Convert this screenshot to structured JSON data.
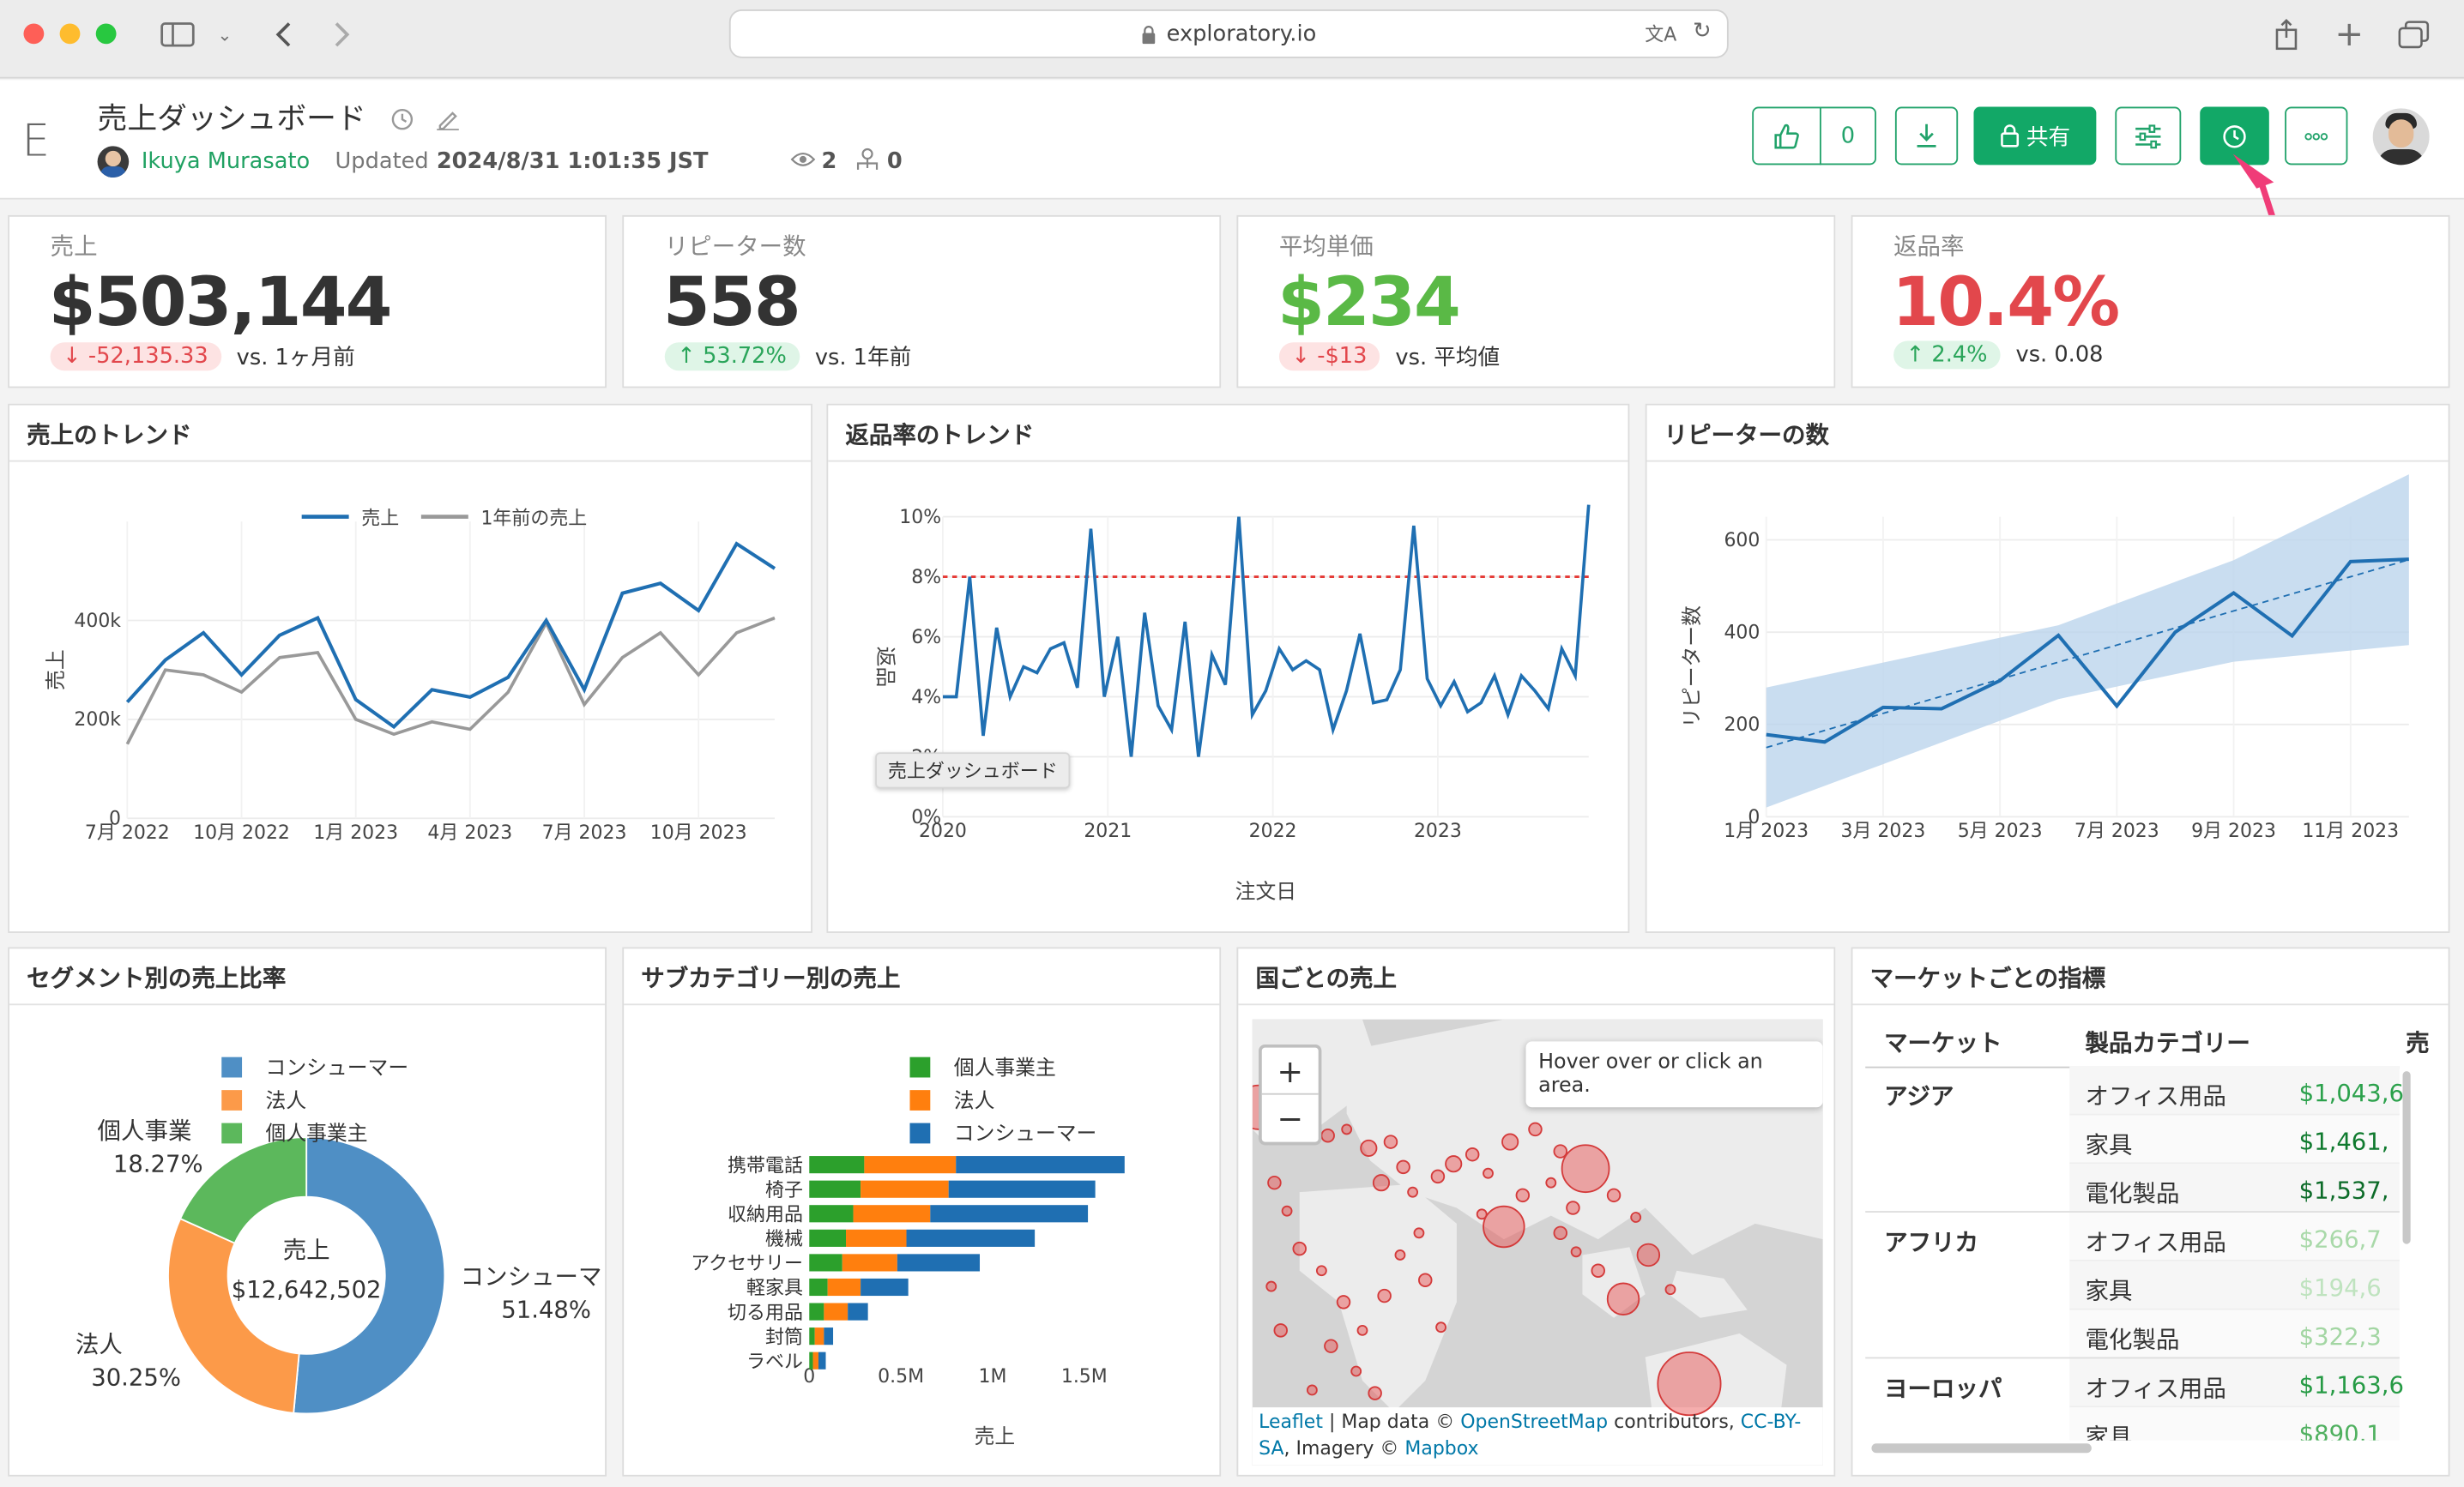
{
  "browser": {
    "url": "exploratory.io"
  },
  "header": {
    "logo": "E",
    "title": "売上ダッシュボード",
    "author": "Ikuya Murasato",
    "updated_label": "Updated",
    "updated_value": "2024/8/31 1:01:35 JST",
    "views": "2",
    "forks": "0",
    "like_count": "0",
    "share_label": "共有"
  },
  "kpis": [
    {
      "label": "売上",
      "value": "$503,144",
      "value_color": "#333333",
      "delta": "-52,135.33",
      "direction": "down",
      "compare": "vs. 1ヶ月前"
    },
    {
      "label": "リピーター数",
      "value": "558",
      "value_color": "#333333",
      "delta": "53.72%",
      "direction": "up",
      "compare": "vs. 1年前"
    },
    {
      "label": "平均単価",
      "value": "$234",
      "value_color": "#5ab946",
      "delta": "-$13",
      "direction": "down",
      "compare": "vs. 平均値"
    },
    {
      "label": "返品率",
      "value": "10.4%",
      "value_color": "#e2474c",
      "delta": "2.4%",
      "direction": "up",
      "compare": "vs. 0.08"
    }
  ],
  "panels": {
    "sales_trend": "売上のトレンド",
    "return_trend": "返品率のトレンド",
    "repeaters": "リピーターの数",
    "segment": "セグメント別の売上比率",
    "subcategory": "サブカテゴリー別の売上",
    "country": "国ごとの売上",
    "market": "マーケットごとの指標"
  },
  "tooltip": "売上ダッシュボード",
  "chart_data": [
    {
      "type": "line",
      "legend": [
        "売上",
        "1年前の売上"
      ],
      "ylabel": "売上",
      "x_ticks": [
        "7月 2022",
        "10月 2022",
        "1月 2023",
        "4月 2023",
        "7月 2023",
        "10月 2023"
      ],
      "y_ticks": [
        "0",
        "200k",
        "400k"
      ],
      "ylim": [
        0,
        600000
      ],
      "series": [
        {
          "name": "売上",
          "color": "#1f6fb2",
          "values": [
            235000,
            320000,
            375000,
            290000,
            370000,
            405000,
            240000,
            185000,
            260000,
            245000,
            285000,
            400000,
            260000,
            455000,
            475000,
            420000,
            555000,
            505000
          ]
        },
        {
          "name": "1年前の売上",
          "color": "#999999",
          "values": [
            150000,
            300000,
            290000,
            255000,
            325000,
            335000,
            200000,
            170000,
            195000,
            180000,
            255000,
            395000,
            230000,
            325000,
            375000,
            290000,
            375000,
            405000
          ]
        }
      ]
    },
    {
      "type": "line",
      "xlabel": "注文日",
      "ylabel": "返品",
      "x_ticks": [
        "2020",
        "2021",
        "2022",
        "2023"
      ],
      "y_ticks": [
        "0%",
        "2%",
        "4%",
        "6%",
        "8%",
        "10%"
      ],
      "ylim": [
        0,
        10
      ],
      "reference_line": 8,
      "values": [
        4.0,
        4.0,
        8.0,
        2.7,
        6.3,
        4.0,
        5.0,
        4.8,
        5.6,
        5.8,
        4.3,
        9.6,
        4.0,
        6.0,
        2.0,
        6.8,
        3.7,
        2.9,
        6.5,
        2.0,
        5.4,
        4.4,
        10.0,
        3.4,
        4.2,
        5.6,
        4.9,
        5.2,
        4.9,
        2.9,
        4.2,
        6.1,
        3.8,
        3.9,
        4.9,
        9.7,
        4.6,
        3.7,
        4.5,
        3.5,
        3.8,
        4.7,
        3.4,
        4.7,
        4.2,
        3.6,
        5.6,
        4.7,
        10.4
      ]
    },
    {
      "type": "line",
      "ylabel": "リピーター数",
      "x_ticks": [
        "1月 2023",
        "3月 2023",
        "5月 2023",
        "7月 2023",
        "9月 2023",
        "11月 2023"
      ],
      "y_ticks": [
        "0",
        "200",
        "400",
        "600"
      ],
      "ylim": [
        0,
        650
      ],
      "values": [
        178,
        162,
        237,
        234,
        295,
        393,
        240,
        400,
        485,
        392,
        553,
        558
      ]
    },
    {
      "type": "pie",
      "center_label": "売上",
      "center_value": "$12,642,502",
      "legend": [
        "コンシューマー",
        "法人",
        "個人事業主"
      ],
      "slices": [
        {
          "name": "コンシューマー",
          "value": 51.48,
          "label": "コンシューマ",
          "pct": "51.48%",
          "color": "#4f8fc5"
        },
        {
          "name": "法人",
          "value": 30.25,
          "label": "法人",
          "pct": "30.25%",
          "color": "#fc9a49"
        },
        {
          "name": "個人事業主",
          "value": 18.27,
          "label": "個人事業",
          "pct": "18.27%",
          "color": "#5cb85c"
        }
      ]
    },
    {
      "type": "bar",
      "orientation": "horizontal",
      "stacked": true,
      "xlabel": "売上",
      "x_ticks": [
        "0",
        "0.5M",
        "1M",
        "1.5M"
      ],
      "xlim": [
        0,
        1.8
      ],
      "legend": [
        "個人事業主",
        "法人",
        "コンシューマー"
      ],
      "categories": [
        "携帯電話",
        "椅子",
        "収納用品",
        "機械",
        "アクセサリー",
        "軽家具",
        "切る用品",
        "封筒",
        "ラベル"
      ],
      "series": [
        {
          "name": "個人事業主",
          "color": "#2ca02c",
          "values": [
            0.3,
            0.28,
            0.24,
            0.2,
            0.18,
            0.1,
            0.08,
            0.03,
            0.02
          ]
        },
        {
          "name": "法人",
          "color": "#ff7f0e",
          "values": [
            0.5,
            0.48,
            0.42,
            0.33,
            0.3,
            0.18,
            0.13,
            0.05,
            0.03
          ]
        },
        {
          "name": "コンシューマー",
          "color": "#1f6fb2",
          "values": [
            0.92,
            0.8,
            0.86,
            0.7,
            0.45,
            0.26,
            0.11,
            0.05,
            0.04
          ]
        }
      ]
    }
  ],
  "map": {
    "hover_text": "Hover over or click an area.",
    "zoom_in": "+",
    "zoom_out": "−",
    "attr_leaflet": "Leaflet",
    "attr_mapdata": "| Map data ©",
    "attr_osm": "OpenStreetMap",
    "attr_contrib": "contributors,",
    "attr_ccbysa": "CC-BY-SA",
    "attr_imagery": "Imagery ©",
    "attr_mapbox": "Mapbox"
  },
  "market_table": {
    "headers": [
      "マーケット",
      "製品カテゴリー",
      "売"
    ],
    "rows": [
      {
        "market": "アジア",
        "category": "オフィス用品",
        "value": "$1,043,6",
        "color": "#2ba14b"
      },
      {
        "market": "",
        "category": "家具",
        "value": "$1,461,",
        "color": "#0f7a2e"
      },
      {
        "market": "",
        "category": "電化製品",
        "value": "$1,537,",
        "color": "#0c6b28"
      },
      {
        "market": "アフリカ",
        "category": "オフィス用品",
        "value": "$266,7",
        "color": "#a9d9a9"
      },
      {
        "market": "",
        "category": "家具",
        "value": "$194,6",
        "color": "#bfe3bf"
      },
      {
        "market": "",
        "category": "電化製品",
        "value": "$322,3",
        "color": "#a3d6a3"
      },
      {
        "market": "ヨーロッパ",
        "category": "オフィス用品",
        "value": "$1,163,6",
        "color": "#259a44"
      },
      {
        "market": "",
        "category": "家具",
        "value": "$890,1",
        "color": "#4fb05f"
      }
    ]
  }
}
